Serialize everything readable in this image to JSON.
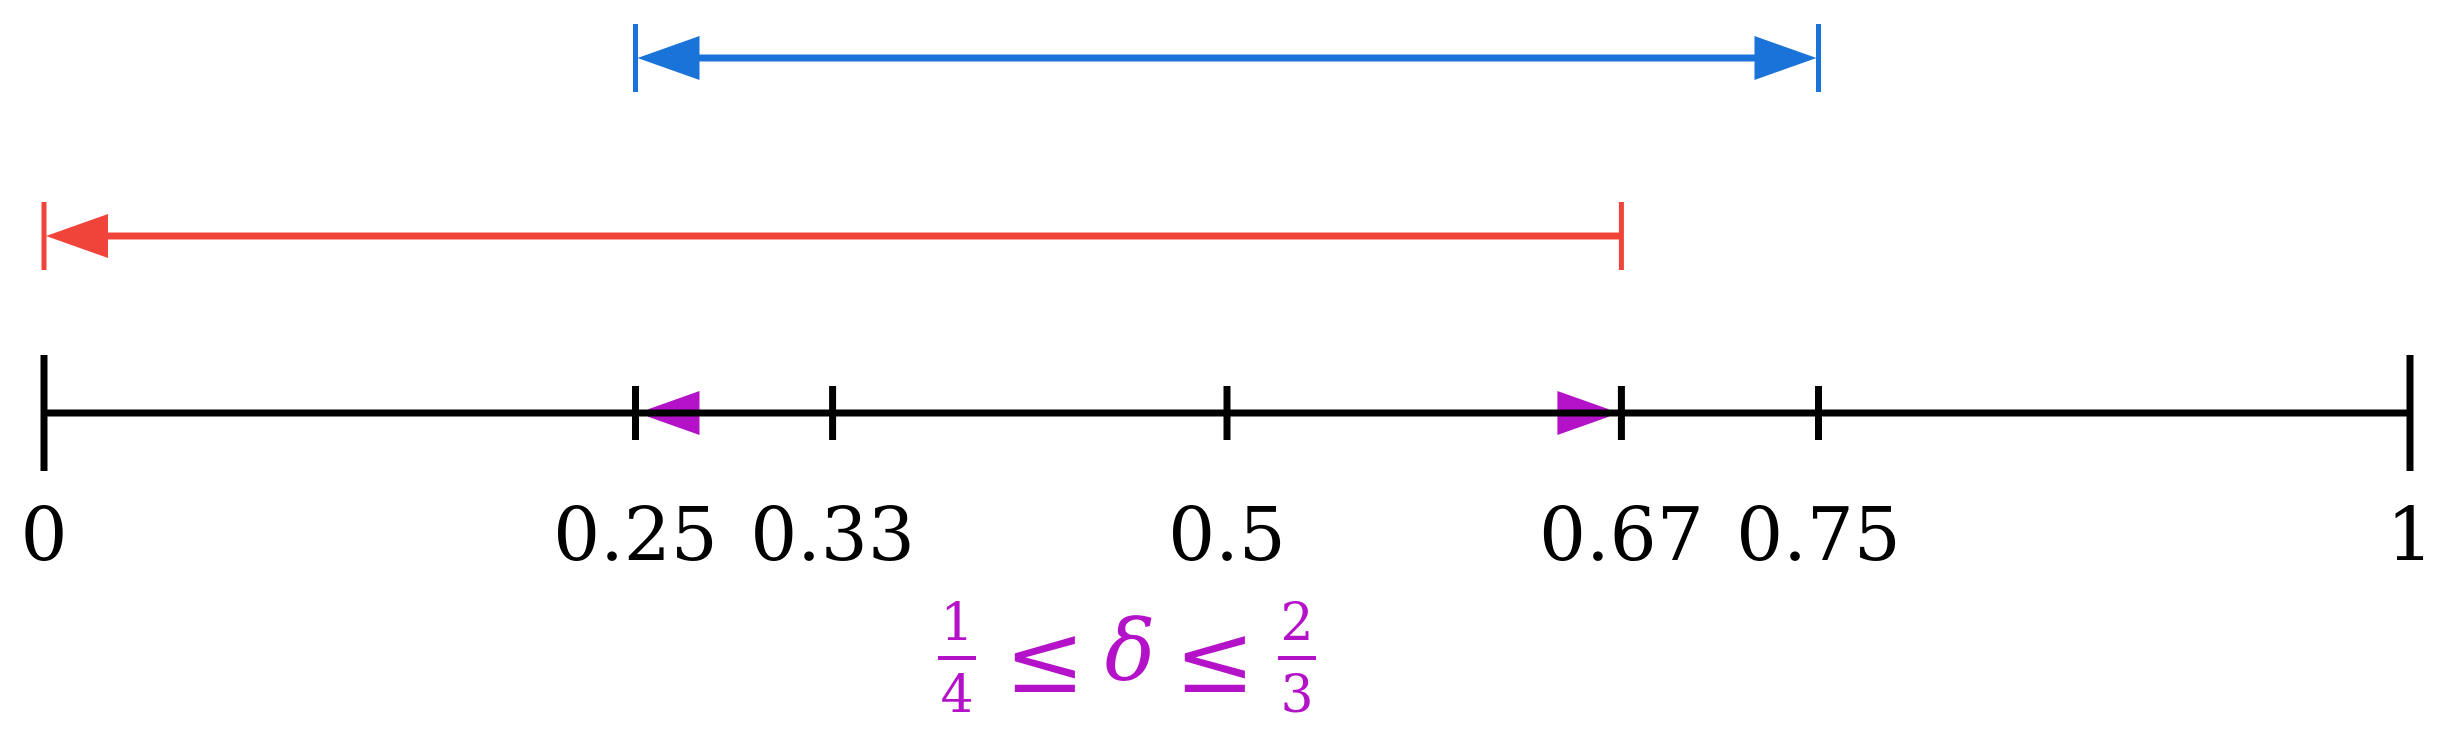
{
  "number_line": {
    "ticks": [
      {
        "value": 0,
        "label": "0"
      },
      {
        "value": 0.25,
        "label": "0.25"
      },
      {
        "value": 0.3333,
        "label": "0.33"
      },
      {
        "value": 0.5,
        "label": "0.5"
      },
      {
        "value": 0.6667,
        "label": "0.67"
      },
      {
        "value": 0.75,
        "label": "0.75"
      },
      {
        "value": 1,
        "label": "1"
      }
    ],
    "range": [
      0,
      1
    ]
  },
  "intervals": [
    {
      "id": "blue",
      "from": 0.25,
      "to": 0.75,
      "arrow_left": true,
      "arrow_right": true,
      "color": "#1a73d9"
    },
    {
      "id": "red",
      "from": 0,
      "to": 0.6667,
      "arrow_left": true,
      "arrow_right": false,
      "color": "#f0443a"
    },
    {
      "id": "magenta",
      "from": 0.25,
      "to": 0.6667,
      "arrow_left": true,
      "arrow_right": true,
      "color": "#b412c8"
    }
  ],
  "inequality": {
    "left_num": "1",
    "left_den": "4",
    "rel1": "≤",
    "var": "δ",
    "rel2": "≤",
    "right_num": "2",
    "right_den": "3",
    "color": "#b412c8"
  }
}
